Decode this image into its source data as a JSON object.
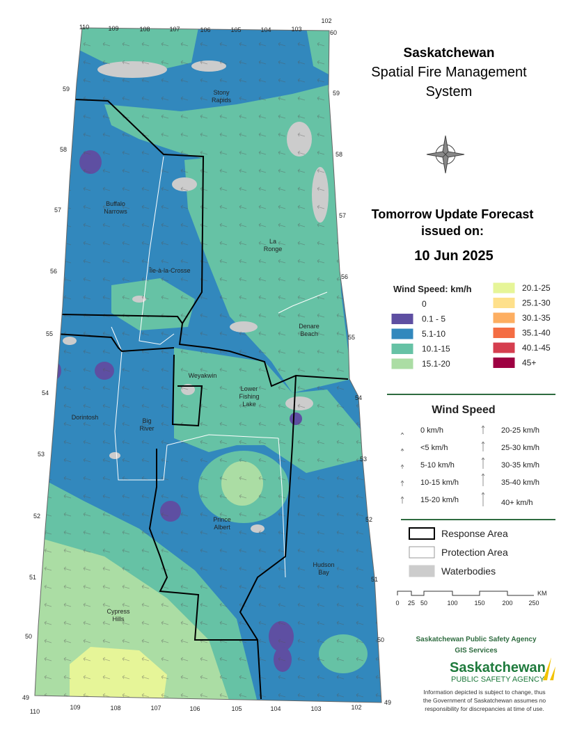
{
  "title": [
    "Saskatchewan",
    "Spatial Fire Management",
    "System"
  ],
  "forecast": {
    "heading": [
      "Tomorrow Update Forecast",
      "issued on:"
    ],
    "date": "10 Jun 2025"
  },
  "longitude_labels_top": [
    "110",
    "109",
    "108",
    "107",
    "106",
    "105",
    "104",
    "103",
    "102"
  ],
  "longitude_labels_bottom": [
    "110",
    "109",
    "108",
    "107",
    "106",
    "105",
    "104",
    "103",
    "102"
  ],
  "latitude_labels_left": [
    "59",
    "58",
    "57",
    "56",
    "55",
    "54",
    "53",
    "52",
    "51",
    "50",
    "49"
  ],
  "latitude_labels_right": [
    "60",
    "59",
    "58",
    "57",
    "56",
    "55",
    "54",
    "53",
    "52",
    "51",
    "50",
    "49"
  ],
  "places": [
    {
      "label": [
        "Stony",
        "Rapids"
      ]
    },
    {
      "label": [
        "Buffalo",
        "Narrows"
      ]
    },
    {
      "label": [
        "La",
        "Ronge"
      ]
    },
    {
      "label": [
        "Île-à-la-Crosse"
      ]
    },
    {
      "label": [
        "Denare",
        "Beach"
      ]
    },
    {
      "label": [
        "Weyakwin"
      ]
    },
    {
      "label": [
        "Lower",
        "Fishing",
        "Lake"
      ]
    },
    {
      "label": [
        "Dorintosh"
      ]
    },
    {
      "label": [
        "Big",
        "River"
      ]
    },
    {
      "label": [
        "Prince",
        "Albert"
      ]
    },
    {
      "label": [
        "Hudson",
        "Bay"
      ]
    },
    {
      "label": [
        "Cypress",
        "Hills"
      ]
    }
  ],
  "wind_speed_legend": {
    "title": "Wind Speed: km/h",
    "classes": [
      {
        "label": "0",
        "color": "#ffffff"
      },
      {
        "label": "0.1 - 5",
        "color": "#5e4fa2"
      },
      {
        "label": "5.1-10",
        "color": "#3288bd"
      },
      {
        "label": "10.1-15",
        "color": "#66c2a5"
      },
      {
        "label": "15.1-20",
        "color": "#abdda4"
      },
      {
        "label": "20.1-25",
        "color": "#e6f598"
      },
      {
        "label": "25.1-30",
        "color": "#fee08b"
      },
      {
        "label": "30.1-35",
        "color": "#fdae61"
      },
      {
        "label": "35.1-40",
        "color": "#f46d43"
      },
      {
        "label": "40.1-45",
        "color": "#d53e4f"
      },
      {
        "label": "45+",
        "color": "#9e0142"
      }
    ]
  },
  "wind_arrows": {
    "title": "Wind Speed",
    "items": [
      "0 km/h",
      "<5 km/h",
      "5-10 km/h",
      "10-15 km/h",
      "15-20 km/h",
      "20-25 km/h",
      "25-30 km/h",
      "30-35 km/h",
      "35-40 km/h",
      "40+ km/h"
    ]
  },
  "map_legend": {
    "items": [
      "Response Area",
      "Protection Area",
      "Waterbodies"
    ]
  },
  "scale": {
    "labels": [
      "0",
      "25",
      "50",
      "100",
      "150",
      "200",
      "250"
    ],
    "unit": "KM"
  },
  "agency": {
    "name": "Saskatchewan Public Safety Agency",
    "unit": "GIS  Services",
    "logo": [
      "Saskatchewan",
      "PUBLIC SAFETY AGENCY"
    ]
  },
  "disclaimer": [
    "Information depicted is subject to change, thus",
    "the Government of Saskatchewan assumes no",
    "responsibility for discrepancies at time of use."
  ]
}
